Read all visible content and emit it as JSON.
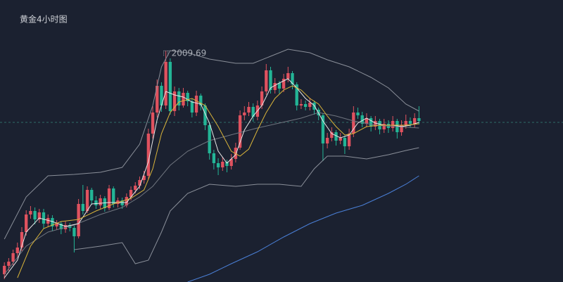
{
  "chart_data": {
    "type": "candlestick",
    "title": "黄金4小时图",
    "up_color": "#e0525f",
    "down_color": "#23b596",
    "background": "#1b2130",
    "xlim": [
      -1,
      128
    ],
    "ylim": [
      1927.5,
      2027.75
    ],
    "price_line": 1984.25,
    "price_line_color": "#2f6b68",
    "candles": [
      [
        1930.25,
        1934.5,
        1928.5,
        1933.25
      ],
      [
        1933.25,
        1936,
        1931.5,
        1934.75
      ],
      [
        1934.75,
        1939,
        1933.5,
        1937.75
      ],
      [
        1937.75,
        1941.5,
        1936,
        1939.75
      ],
      [
        1939.75,
        1947,
        1938.5,
        1945.25
      ],
      [
        1945.25,
        1953,
        1944,
        1951.5
      ],
      [
        1951.5,
        1954.5,
        1950,
        1952.75
      ],
      [
        1952.75,
        1954,
        1948,
        1949.75
      ],
      [
        1949.75,
        1953.5,
        1948.5,
        1952.25
      ],
      [
        1952.25,
        1953.5,
        1946.5,
        1948.25
      ],
      [
        1948.25,
        1951.5,
        1947,
        1950.25
      ],
      [
        1950.25,
        1951.25,
        1945.5,
        1947.25
      ],
      [
        1947.25,
        1949.5,
        1946,
        1948.25
      ],
      [
        1948.25,
        1949,
        1944.5,
        1946.25
      ],
      [
        1946.25,
        1949,
        1945,
        1947.75
      ],
      [
        1947.75,
        1948.5,
        1945.5,
        1946.75
      ],
      [
        1946.75,
        1947.5,
        1938,
        1943.75
      ],
      [
        1943.75,
        1957,
        1943,
        1955.25
      ],
      [
        1955.25,
        1962,
        1951.5,
        1952.75
      ],
      [
        1952.75,
        1961.5,
        1952,
        1960.25
      ],
      [
        1960.25,
        1961,
        1955,
        1956.5
      ],
      [
        1956.5,
        1958,
        1953.5,
        1954.75
      ],
      [
        1954.75,
        1958.5,
        1953.5,
        1957.25
      ],
      [
        1957.25,
        1958,
        1952.5,
        1953.75
      ],
      [
        1953.75,
        1962,
        1953,
        1960.75
      ],
      [
        1960.75,
        1961.5,
        1954,
        1955.25
      ],
      [
        1955.25,
        1957.5,
        1954,
        1956.5
      ],
      [
        1956.5,
        1957.5,
        1953.5,
        1954.75
      ],
      [
        1954.75,
        1959,
        1954,
        1957.75
      ],
      [
        1957.75,
        1961.5,
        1956.5,
        1960.25
      ],
      [
        1960.25,
        1963,
        1959,
        1961.75
      ],
      [
        1961.75,
        1965,
        1960.5,
        1963.75
      ],
      [
        1963.75,
        1967,
        1962.5,
        1965.25
      ],
      [
        1965.25,
        1982,
        1964,
        1980.25
      ],
      [
        1980.25,
        1990,
        1978.5,
        1987.75
      ],
      [
        1987.75,
        1999.5,
        1986,
        1997.25
      ],
      [
        1997.25,
        1998.5,
        1988,
        1990.25
      ],
      [
        1990.25,
        2009.69,
        1989,
        2005.75
      ],
      [
        2005.75,
        2007,
        1987,
        1988.25
      ],
      [
        1988.25,
        1997,
        1986.5,
        1995.25
      ],
      [
        1995.25,
        1996.5,
        1988.5,
        1990.25
      ],
      [
        1990.25,
        1996.5,
        1989.5,
        1994.75
      ],
      [
        1994.75,
        1995.5,
        1990,
        1991.75
      ],
      [
        1991.75,
        1992.5,
        1986,
        1987.75
      ],
      [
        1987.75,
        1995.5,
        1986.5,
        1993.75
      ],
      [
        1993.75,
        1994.5,
        1988.5,
        1990.25
      ],
      [
        1990.25,
        1991,
        1981.5,
        1983.25
      ],
      [
        1983.25,
        1984,
        1971,
        1973.25
      ],
      [
        1973.25,
        1974.5,
        1967.5,
        1969.75
      ],
      [
        1969.75,
        1971.5,
        1965.5,
        1968.25
      ],
      [
        1968.25,
        1972,
        1967,
        1970.25
      ],
      [
        1970.25,
        1971,
        1966.5,
        1968.75
      ],
      [
        1968.75,
        1973,
        1967.5,
        1971.25
      ],
      [
        1971.25,
        1977,
        1970,
        1975.25
      ],
      [
        1975.25,
        1988.5,
        1974.5,
        1986.75
      ],
      [
        1986.75,
        1990,
        1985,
        1987.75
      ],
      [
        1987.75,
        1991.5,
        1986.5,
        1989.75
      ],
      [
        1989.75,
        1991,
        1984.5,
        1986.25
      ],
      [
        1986.25,
        1992,
        1985,
        1990.25
      ],
      [
        1990.25,
        1997,
        1989,
        1995.25
      ],
      [
        1995.25,
        2005,
        1994,
        2002.75
      ],
      [
        2002.75,
        2004,
        1994.5,
        1995.75
      ],
      [
        1995.75,
        2000,
        1994.5,
        1998.25
      ],
      [
        1998.25,
        1999,
        1994.5,
        1996.25
      ],
      [
        1996.25,
        2001.5,
        1995,
        1999.75
      ],
      [
        1999.75,
        2004,
        1998.5,
        2001.75
      ],
      [
        2001.75,
        2002.5,
        1996,
        1997.75
      ],
      [
        1997.75,
        1998.5,
        1988.5,
        1990.25
      ],
      [
        1990.25,
        1992.5,
        1989,
        1990.75
      ],
      [
        1990.75,
        1992,
        1988.5,
        1989.75
      ],
      [
        1989.75,
        1993,
        1988.5,
        1991.25
      ],
      [
        1991.25,
        1992,
        1987,
        1988.75
      ],
      [
        1988.75,
        1989.5,
        1985,
        1986.75
      ],
      [
        1986.75,
        1987.5,
        1970.5,
        1976.75
      ],
      [
        1976.75,
        1980.5,
        1975,
        1978.75
      ],
      [
        1978.75,
        1982.5,
        1977.5,
        1980.75
      ],
      [
        1980.75,
        1981.5,
        1976,
        1977.75
      ],
      [
        1977.75,
        1980.5,
        1976.5,
        1978.75
      ],
      [
        1978.75,
        1979.5,
        1973,
        1975.75
      ],
      [
        1975.75,
        1982,
        1974.5,
        1980.25
      ],
      [
        1980.25,
        1990,
        1979,
        1987.75
      ],
      [
        1987.75,
        1989.5,
        1985.5,
        1986.75
      ],
      [
        1986.75,
        1988,
        1982.5,
        1983.75
      ],
      [
        1983.75,
        1987.5,
        1982.5,
        1985.75
      ],
      [
        1985.75,
        1986.5,
        1981,
        1982.75
      ],
      [
        1982.75,
        1986.5,
        1981.5,
        1984.75
      ],
      [
        1984.75,
        1985.5,
        1980,
        1981.75
      ],
      [
        1981.75,
        1985.5,
        1980.5,
        1983.75
      ],
      [
        1983.75,
        1985,
        1980.5,
        1982.25
      ],
      [
        1982.25,
        1986.5,
        1981,
        1984.75
      ],
      [
        1984.75,
        1985.5,
        1978.5,
        1980.75
      ],
      [
        1980.75,
        1985,
        1979.5,
        1983.25
      ],
      [
        1983.25,
        1987,
        1982,
        1984.75
      ],
      [
        1984.75,
        1986,
        1982.5,
        1983.75
      ],
      [
        1983.75,
        1987.5,
        1982.5,
        1985.75
      ],
      [
        1985.75,
        1990,
        1983.5,
        1984.75
      ]
    ],
    "lines": [
      {
        "color": "#8a8f99",
        "x": [
          0,
          5,
          10,
          16,
          22,
          27,
          31,
          34,
          36,
          38,
          42,
          47,
          53,
          57,
          61,
          65,
          70,
          74,
          79,
          84,
          88,
          92,
          95
        ],
        "values": [
          1942.75,
          1957.75,
          1965.25,
          1965.75,
          1966.5,
          1968.25,
          1976.5,
          1990.25,
          2004,
          2009.75,
          2009,
          2006.75,
          2005.25,
          2005.25,
          2007.75,
          2010.25,
          2009,
          2006.5,
          2004,
          2000.25,
          1996.5,
          1990.75,
          1988.25
        ]
      },
      {
        "color": "#70757f",
        "x": [
          0,
          5,
          10,
          16,
          22,
          27,
          31,
          34,
          38,
          42,
          47,
          53,
          58,
          63,
          68,
          72,
          76,
          80,
          85,
          90,
          95
        ],
        "values": [
          1930.25,
          1940.25,
          1945.25,
          1947.75,
          1951.5,
          1954,
          1957.75,
          1961.5,
          1969,
          1974,
          1977.75,
          1980.25,
          1982.25,
          1984,
          1985.75,
          1987.75,
          1986.5,
          1984.75,
          1983.25,
          1982.75,
          1982.25
        ]
      },
      {
        "color": "#8a8f99",
        "x": [
          16,
          22,
          27,
          30,
          33,
          36,
          38,
          42,
          47,
          53,
          58,
          63,
          68,
          71,
          74,
          78,
          83,
          88,
          92,
          95
        ],
        "values": [
          1939,
          1940.25,
          1941.5,
          1934,
          1935.25,
          1945.25,
          1952.75,
          1959,
          1962.25,
          1961.5,
          1962.25,
          1962.25,
          1961.5,
          1967.75,
          1972.25,
          1972.25,
          1971.25,
          1972.75,
          1974.25,
          1975.25
        ]
      },
      {
        "color": "#e8e8e8",
        "x": [
          0,
          3,
          5,
          8,
          11,
          14,
          17,
          20,
          24,
          28,
          31,
          33,
          35,
          37,
          39,
          41,
          43,
          45,
          47,
          49,
          51,
          53,
          55,
          57,
          59,
          61,
          63,
          65,
          67,
          69,
          71,
          73,
          75,
          77,
          79,
          81,
          83,
          85,
          87,
          89,
          91,
          93,
          95
        ],
        "values": [
          1929,
          1935.25,
          1945.25,
          1950.25,
          1949,
          1947.25,
          1948.25,
          1955.25,
          1955.75,
          1955.75,
          1961.5,
          1970.25,
          1985.25,
          1995.25,
          1994,
          1993.25,
          1991.5,
          1990.75,
          1984,
          1974,
          1969.75,
          1972.75,
          1981.5,
          1986.5,
          1990.25,
          1996.5,
          1998.25,
          1999.75,
          1996.5,
          1992.75,
          1990.25,
          1984.75,
          1980.25,
          1978.75,
          1979.75,
          1984,
          1985.75,
          1984,
          1983.25,
          1983.25,
          1982.75,
          1983.25,
          1984.25
        ]
      },
      {
        "color": "#d9b43a",
        "x": [
          3,
          6,
          9,
          13,
          17,
          21,
          25,
          29,
          32,
          34,
          36,
          38,
          40,
          43,
          46,
          49,
          52,
          54,
          56,
          58,
          60,
          62,
          64,
          66,
          68,
          70,
          72,
          74,
          76,
          78,
          80,
          83,
          86,
          89,
          92,
          95
        ],
        "values": [
          1929,
          1940.25,
          1946.5,
          1949,
          1949.75,
          1952.75,
          1955.25,
          1957.25,
          1960.25,
          1967.75,
          1980.25,
          1987.75,
          1991.5,
          1992.75,
          1990.25,
          1982.75,
          1974,
          1972.25,
          1974.75,
          1981.5,
          1987.75,
          1992.75,
          1995.75,
          1997.25,
          1995.75,
          1992.75,
          1990.75,
          1986.5,
          1982.75,
          1979.75,
          1980.25,
          1982.75,
          1983.25,
          1983.25,
          1983.25,
          1983.75
        ]
      },
      {
        "color": "#4a7fd6",
        "x": [
          42,
          47,
          52,
          58,
          64,
          70,
          76,
          82,
          88,
          92,
          95
        ],
        "values": [
          1927.5,
          1930.25,
          1934,
          1938.25,
          1943.5,
          1948.25,
          1952,
          1954.75,
          1959,
          1962.25,
          1965.25
        ]
      }
    ]
  }
}
